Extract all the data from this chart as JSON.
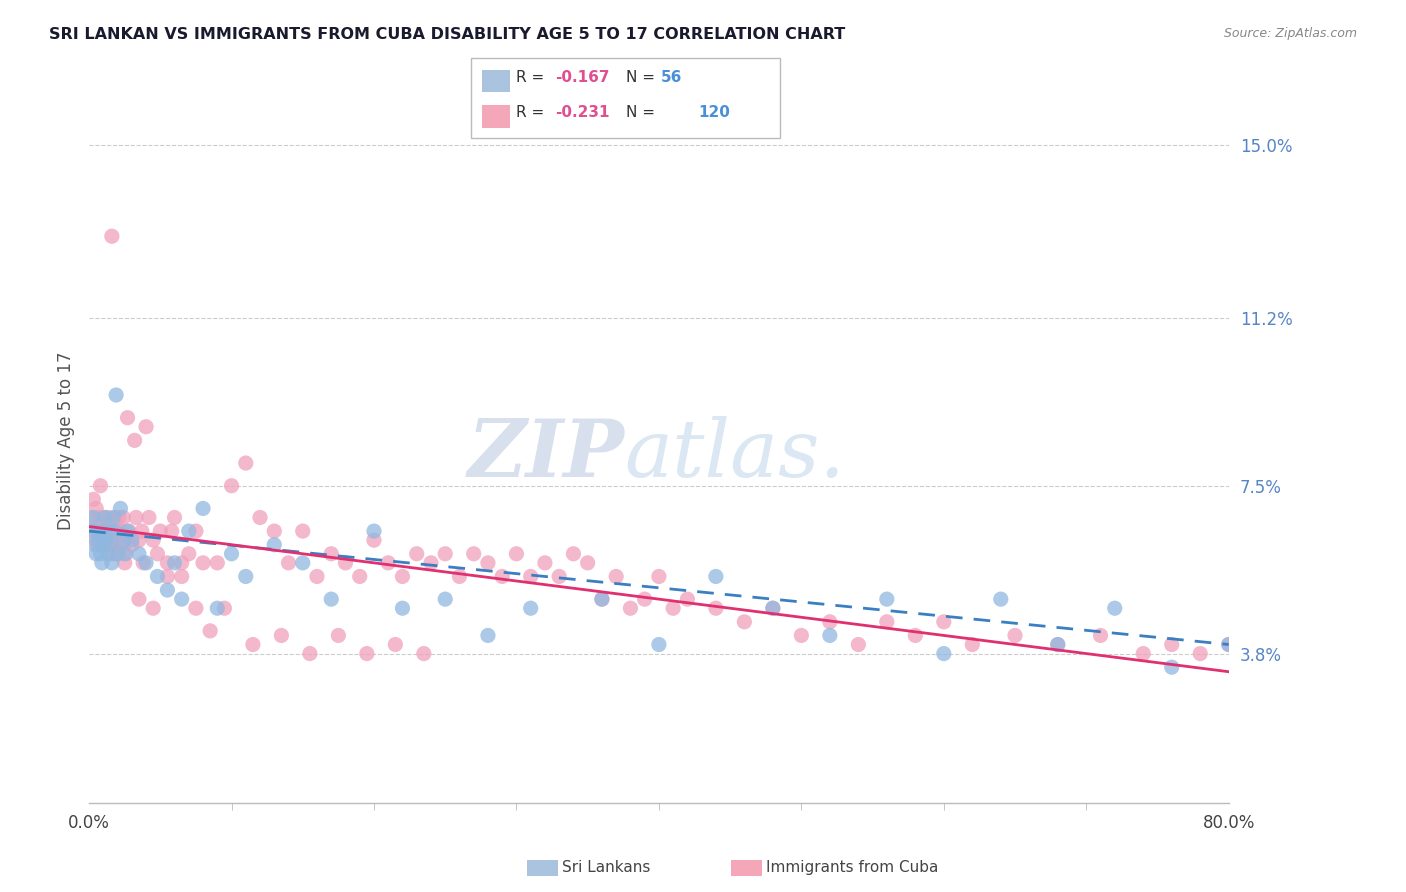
{
  "title": "SRI LANKAN VS IMMIGRANTS FROM CUBA DISABILITY AGE 5 TO 17 CORRELATION CHART",
  "source": "Source: ZipAtlas.com",
  "ylabel": "Disability Age 5 to 17",
  "right_ytick_labels": [
    "3.8%",
    "7.5%",
    "11.2%",
    "15.0%"
  ],
  "right_ytick_values": [
    0.038,
    0.075,
    0.112,
    0.15
  ],
  "watermark_zip": "ZIP",
  "watermark_atlas": "atlas.",
  "bottom_legend": [
    "Sri Lankans",
    "Immigrants from Cuba"
  ],
  "blue_color": "#90b8e0",
  "pink_color": "#f0a0bb",
  "line_blue_color": "#3a7fc1",
  "line_pink_color": "#e03070",
  "xlim": [
    0.0,
    0.8
  ],
  "ylim": [
    0.005,
    0.165
  ],
  "blue_scatter_x": [
    0.002,
    0.003,
    0.004,
    0.005,
    0.006,
    0.007,
    0.008,
    0.009,
    0.01,
    0.01,
    0.011,
    0.012,
    0.013,
    0.014,
    0.015,
    0.016,
    0.017,
    0.018,
    0.019,
    0.02,
    0.022,
    0.024,
    0.025,
    0.027,
    0.03,
    0.035,
    0.04,
    0.048,
    0.055,
    0.06,
    0.065,
    0.07,
    0.08,
    0.09,
    0.1,
    0.11,
    0.13,
    0.15,
    0.17,
    0.2,
    0.22,
    0.25,
    0.28,
    0.31,
    0.36,
    0.4,
    0.44,
    0.48,
    0.52,
    0.56,
    0.6,
    0.64,
    0.68,
    0.72,
    0.76,
    0.8
  ],
  "blue_scatter_y": [
    0.065,
    0.068,
    0.062,
    0.06,
    0.065,
    0.063,
    0.06,
    0.058,
    0.065,
    0.062,
    0.068,
    0.063,
    0.06,
    0.065,
    0.062,
    0.058,
    0.068,
    0.065,
    0.095,
    0.06,
    0.07,
    0.063,
    0.06,
    0.065,
    0.063,
    0.06,
    0.058,
    0.055,
    0.052,
    0.058,
    0.05,
    0.065,
    0.07,
    0.048,
    0.06,
    0.055,
    0.062,
    0.058,
    0.05,
    0.065,
    0.048,
    0.05,
    0.042,
    0.048,
    0.05,
    0.04,
    0.055,
    0.048,
    0.042,
    0.05,
    0.038,
    0.05,
    0.04,
    0.048,
    0.035,
    0.04
  ],
  "pink_scatter_x": [
    0.002,
    0.003,
    0.004,
    0.005,
    0.005,
    0.006,
    0.007,
    0.007,
    0.008,
    0.009,
    0.01,
    0.01,
    0.011,
    0.012,
    0.012,
    0.013,
    0.013,
    0.014,
    0.015,
    0.015,
    0.016,
    0.016,
    0.017,
    0.018,
    0.019,
    0.02,
    0.02,
    0.021,
    0.022,
    0.023,
    0.024,
    0.025,
    0.026,
    0.027,
    0.028,
    0.03,
    0.032,
    0.033,
    0.035,
    0.037,
    0.038,
    0.04,
    0.042,
    0.045,
    0.048,
    0.05,
    0.055,
    0.058,
    0.06,
    0.065,
    0.07,
    0.075,
    0.08,
    0.09,
    0.1,
    0.11,
    0.12,
    0.13,
    0.14,
    0.15,
    0.16,
    0.17,
    0.18,
    0.19,
    0.2,
    0.21,
    0.22,
    0.23,
    0.24,
    0.25,
    0.26,
    0.27,
    0.28,
    0.29,
    0.3,
    0.31,
    0.32,
    0.33,
    0.34,
    0.35,
    0.36,
    0.37,
    0.38,
    0.39,
    0.4,
    0.41,
    0.42,
    0.44,
    0.46,
    0.48,
    0.5,
    0.52,
    0.54,
    0.56,
    0.58,
    0.6,
    0.62,
    0.65,
    0.68,
    0.71,
    0.74,
    0.76,
    0.78,
    0.8,
    0.018,
    0.025,
    0.035,
    0.045,
    0.055,
    0.065,
    0.075,
    0.085,
    0.095,
    0.115,
    0.135,
    0.155,
    0.175,
    0.195,
    0.215,
    0.235
  ],
  "pink_scatter_y": [
    0.068,
    0.072,
    0.065,
    0.063,
    0.07,
    0.062,
    0.068,
    0.065,
    0.075,
    0.063,
    0.065,
    0.062,
    0.068,
    0.063,
    0.065,
    0.068,
    0.062,
    0.065,
    0.063,
    0.06,
    0.13,
    0.065,
    0.062,
    0.068,
    0.063,
    0.065,
    0.06,
    0.068,
    0.065,
    0.062,
    0.068,
    0.063,
    0.06,
    0.09,
    0.065,
    0.062,
    0.085,
    0.068,
    0.063,
    0.065,
    0.058,
    0.088,
    0.068,
    0.063,
    0.06,
    0.065,
    0.058,
    0.065,
    0.068,
    0.058,
    0.06,
    0.065,
    0.058,
    0.058,
    0.075,
    0.08,
    0.068,
    0.065,
    0.058,
    0.065,
    0.055,
    0.06,
    0.058,
    0.055,
    0.063,
    0.058,
    0.055,
    0.06,
    0.058,
    0.06,
    0.055,
    0.06,
    0.058,
    0.055,
    0.06,
    0.055,
    0.058,
    0.055,
    0.06,
    0.058,
    0.05,
    0.055,
    0.048,
    0.05,
    0.055,
    0.048,
    0.05,
    0.048,
    0.045,
    0.048,
    0.042,
    0.045,
    0.04,
    0.045,
    0.042,
    0.045,
    0.04,
    0.042,
    0.04,
    0.042,
    0.038,
    0.04,
    0.038,
    0.04,
    0.06,
    0.058,
    0.05,
    0.048,
    0.055,
    0.055,
    0.048,
    0.043,
    0.048,
    0.04,
    0.042,
    0.038,
    0.042,
    0.038,
    0.04,
    0.038
  ]
}
